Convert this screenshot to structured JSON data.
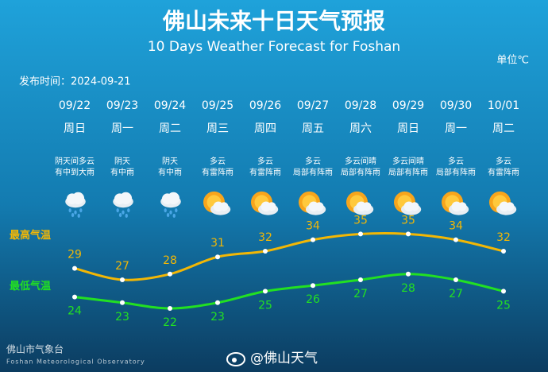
{
  "chart_data": {
    "type": "line",
    "title": "佛山未来十日天气预报",
    "subtitle": "10 Days Weather Forecast for Foshan",
    "unit": "单位℃",
    "issued": "发布时间：2024-09-21",
    "categories": [
      "09/22",
      "09/23",
      "09/24",
      "09/25",
      "09/26",
      "09/27",
      "09/28",
      "09/29",
      "09/30",
      "10/01"
    ],
    "weekdays": [
      "周日",
      "周一",
      "周二",
      "周三",
      "周四",
      "周五",
      "周六",
      "周日",
      "周一",
      "周二"
    ],
    "conditions": [
      [
        "阴天间多云",
        "有中到大雨"
      ],
      [
        "阴天",
        "有中雨"
      ],
      [
        "阴天",
        "有中雨"
      ],
      [
        "多云",
        "有雷阵雨"
      ],
      [
        "多云",
        "有雷阵雨"
      ],
      [
        "多云",
        "局部有阵雨"
      ],
      [
        "多云间晴",
        "局部有阵雨"
      ],
      [
        "多云间晴",
        "局部有阵雨"
      ],
      [
        "多云",
        "局部有阵雨"
      ],
      [
        "多云",
        "有雷阵雨"
      ]
    ],
    "series": [
      {
        "name": "最高气温",
        "color": "#f2b705",
        "values": [
          29,
          27,
          28,
          31,
          32,
          34,
          35,
          35,
          34,
          32
        ]
      },
      {
        "name": "最低气温",
        "color": "#22e022",
        "values": [
          24,
          23,
          22,
          23,
          25,
          26,
          27,
          28,
          27,
          25
        ]
      }
    ],
    "footer": {
      "org": "佛山市气象台",
      "org_en": "Foshan Meteorological Observatory",
      "account": "@佛山天气"
    }
  }
}
